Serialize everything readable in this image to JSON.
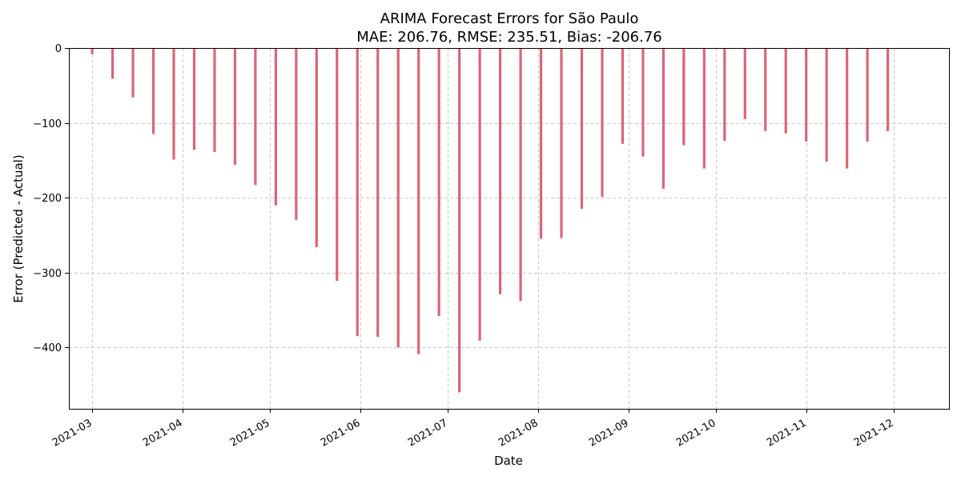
{
  "chart_data": {
    "type": "bar",
    "title_line1": "ARIMA Forecast Errors for São Paulo",
    "title_line2": "MAE: 206.76, RMSE: 235.51, Bias: -206.76",
    "xlabel": "Date",
    "ylabel": "Error (Predicted - Actual)",
    "bar_color": "#dc6478",
    "grid": true,
    "xlim": [
      "2021-02-21",
      "2021-12-20"
    ],
    "ylim": [
      -482,
      0
    ],
    "yticks": [
      0,
      -100,
      -200,
      -300,
      -400
    ],
    "ytick_labels": [
      "0",
      "−100",
      "−200",
      "−300",
      "−400"
    ],
    "xticks": [
      "2021-03-01",
      "2021-04-01",
      "2021-05-01",
      "2021-06-01",
      "2021-07-01",
      "2021-08-01",
      "2021-09-01",
      "2021-10-01",
      "2021-11-01",
      "2021-12-01"
    ],
    "xtick_labels": [
      "2021-03",
      "2021-04",
      "2021-05",
      "2021-06",
      "2021-07",
      "2021-08",
      "2021-09",
      "2021-10",
      "2021-11",
      "2021-12"
    ],
    "x": [
      "2021-03-01",
      "2021-03-08",
      "2021-03-15",
      "2021-03-22",
      "2021-03-29",
      "2021-04-05",
      "2021-04-12",
      "2021-04-19",
      "2021-04-26",
      "2021-05-03",
      "2021-05-10",
      "2021-05-17",
      "2021-05-24",
      "2021-05-31",
      "2021-06-07",
      "2021-06-14",
      "2021-06-21",
      "2021-06-28",
      "2021-07-05",
      "2021-07-12",
      "2021-07-19",
      "2021-07-26",
      "2021-08-02",
      "2021-08-09",
      "2021-08-16",
      "2021-08-23",
      "2021-08-30",
      "2021-09-06",
      "2021-09-13",
      "2021-09-20",
      "2021-09-27",
      "2021-10-04",
      "2021-10-11",
      "2021-10-18",
      "2021-10-25",
      "2021-11-01",
      "2021-11-08",
      "2021-11-15",
      "2021-11-22",
      "2021-11-29"
    ],
    "values": [
      -8,
      -41,
      -66,
      -115,
      -149,
      -136,
      -139,
      -156,
      -183,
      -210,
      -230,
      -266,
      -311,
      -385,
      -386,
      -400,
      -409,
      -358,
      -460,
      -391,
      -329,
      -338,
      -255,
      -254,
      -215,
      -199,
      -128,
      -145,
      -188,
      -130,
      -161,
      -124,
      -95,
      -111,
      -114,
      -125,
      -152,
      -161,
      -125,
      -111
    ]
  }
}
